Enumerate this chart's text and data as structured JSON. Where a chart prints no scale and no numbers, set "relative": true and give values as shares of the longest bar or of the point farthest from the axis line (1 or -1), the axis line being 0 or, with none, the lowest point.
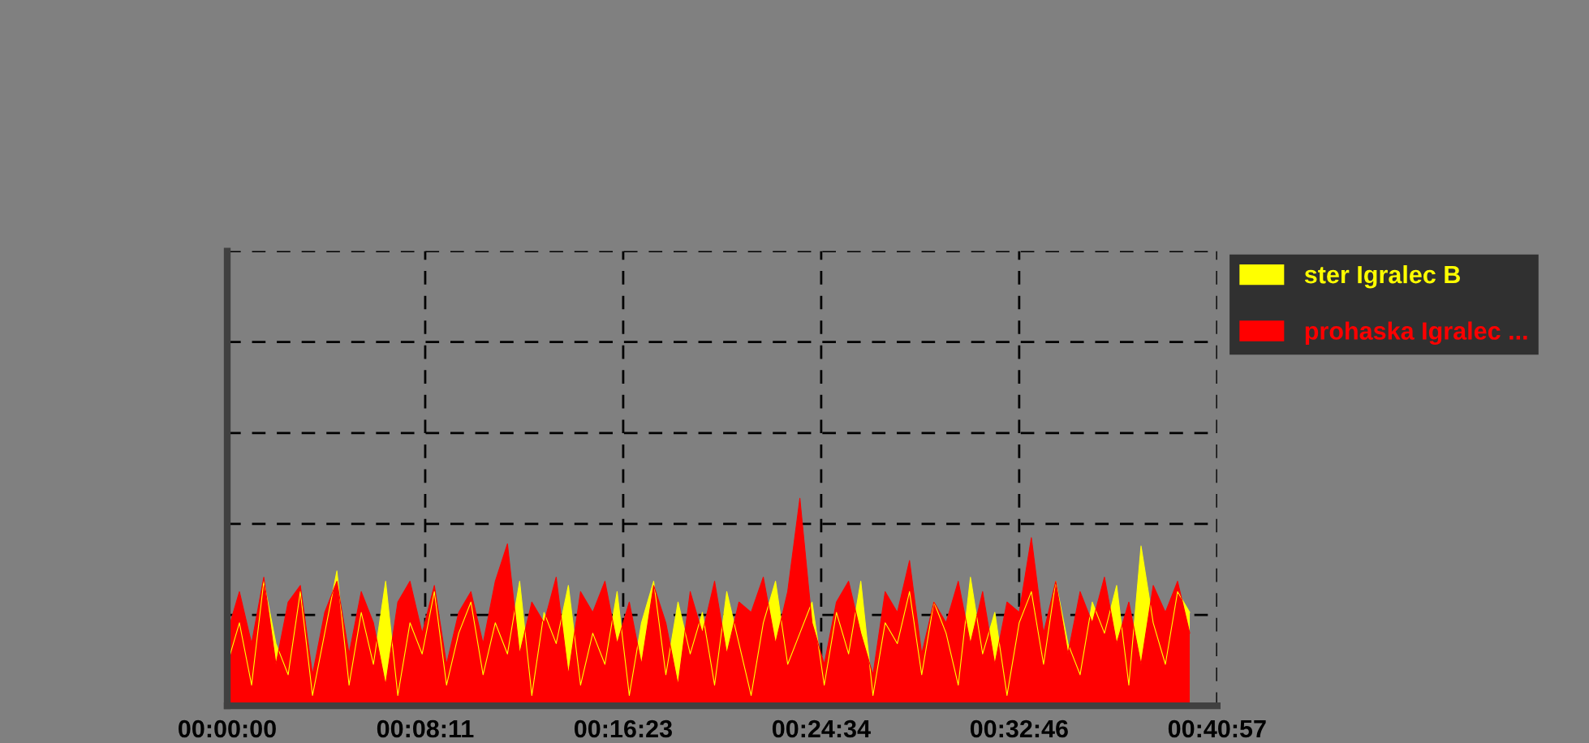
{
  "chart_data": {
    "type": "area",
    "relative": true,
    "grid": true,
    "legend": "top right",
    "tick_labels": "x",
    "line_style": "solid",
    "xlim": [
      0,
      0.6825
    ],
    "xticks": [
      {
        "value": 0,
        "label": "00:00:00"
      },
      {
        "value": 0.1365,
        "label": "00:08:11"
      },
      {
        "value": 0.273,
        "label": "00:16:23"
      },
      {
        "value": 0.4095,
        "label": "00:24:34"
      },
      {
        "value": 0.546,
        "label": "00:32:46"
      },
      {
        "value": 0.6825,
        "label": "00:40:57"
      }
    ],
    "x": [
      0,
      0.0084,
      0.0168,
      0.0252,
      0.0336,
      0.042,
      0.0504,
      0.0588,
      0.0672,
      0.0756,
      0.084,
      0.0924,
      0.1008,
      0.1092,
      0.1176,
      0.126,
      0.1344,
      0.1428,
      0.1512,
      0.1596,
      0.168,
      0.1764,
      0.1848,
      0.1932,
      0.2016,
      0.21,
      0.2184,
      0.2268,
      0.2352,
      0.2436,
      0.252,
      0.2604,
      0.2688,
      0.2772,
      0.2856,
      0.294,
      0.3024,
      0.3108,
      0.3192,
      0.3276,
      0.336,
      0.3444,
      0.3528,
      0.3612,
      0.3696,
      0.378,
      0.3864,
      0.3948,
      0.4032,
      0.4116,
      0.42,
      0.4284,
      0.4368,
      0.4452,
      0.4536,
      0.462,
      0.4704,
      0.4788,
      0.4872,
      0.4956,
      0.504,
      0.5124,
      0.5208,
      0.5292,
      0.5376,
      0.546,
      0.5544,
      0.5628,
      0.5712,
      0.5796,
      0.588,
      0.5964,
      0.6048,
      0.6132,
      0.6216,
      0.63,
      0.6384,
      0.6468,
      0.6552,
      0.6636
    ],
    "series": [
      {
        "name": "ster Igralec B",
        "color": "#ffff00",
        "values": [
          0.2,
          0.4,
          0.1,
          0.6,
          0.3,
          0.15,
          0.55,
          0.05,
          0.35,
          0.65,
          0.1,
          0.45,
          0.2,
          0.6,
          0.05,
          0.4,
          0.25,
          0.55,
          0.1,
          0.35,
          0.5,
          0.15,
          0.4,
          0.25,
          0.6,
          0.05,
          0.45,
          0.3,
          0.58,
          0.1,
          0.35,
          0.2,
          0.55,
          0.05,
          0.4,
          0.6,
          0.15,
          0.5,
          0.25,
          0.45,
          0.1,
          0.55,
          0.3,
          0.05,
          0.4,
          0.6,
          0.2,
          0.35,
          0.5,
          0.1,
          0.45,
          0.25,
          0.6,
          0.05,
          0.4,
          0.3,
          0.55,
          0.15,
          0.5,
          0.35,
          0.1,
          0.62,
          0.25,
          0.45,
          0.05,
          0.4,
          0.55,
          0.2,
          0.6,
          0.3,
          0.15,
          0.5,
          0.35,
          0.58,
          0.1,
          0.77,
          0.4,
          0.2,
          0.55,
          0.45
        ]
      },
      {
        "name": "prohaska Igralec ...",
        "color": "#ff0000",
        "values": [
          0.35,
          0.55,
          0.3,
          0.62,
          0.2,
          0.5,
          0.58,
          0.15,
          0.45,
          0.6,
          0.25,
          0.55,
          0.4,
          0.1,
          0.5,
          0.6,
          0.35,
          0.58,
          0.2,
          0.45,
          0.55,
          0.3,
          0.6,
          0.78,
          0.25,
          0.5,
          0.4,
          0.62,
          0.15,
          0.55,
          0.45,
          0.6,
          0.3,
          0.5,
          0.2,
          0.58,
          0.4,
          0.1,
          0.55,
          0.35,
          0.6,
          0.25,
          0.5,
          0.45,
          0.62,
          0.3,
          0.55,
          1,
          0.4,
          0.2,
          0.5,
          0.6,
          0.35,
          0.15,
          0.55,
          0.45,
          0.7,
          0.25,
          0.5,
          0.4,
          0.6,
          0.3,
          0.55,
          0.2,
          0.5,
          0.45,
          0.81,
          0.35,
          0.6,
          0.25,
          0.55,
          0.4,
          0.62,
          0.3,
          0.5,
          0.2,
          0.58,
          0.45,
          0.6,
          0.35
        ]
      }
    ]
  }
}
